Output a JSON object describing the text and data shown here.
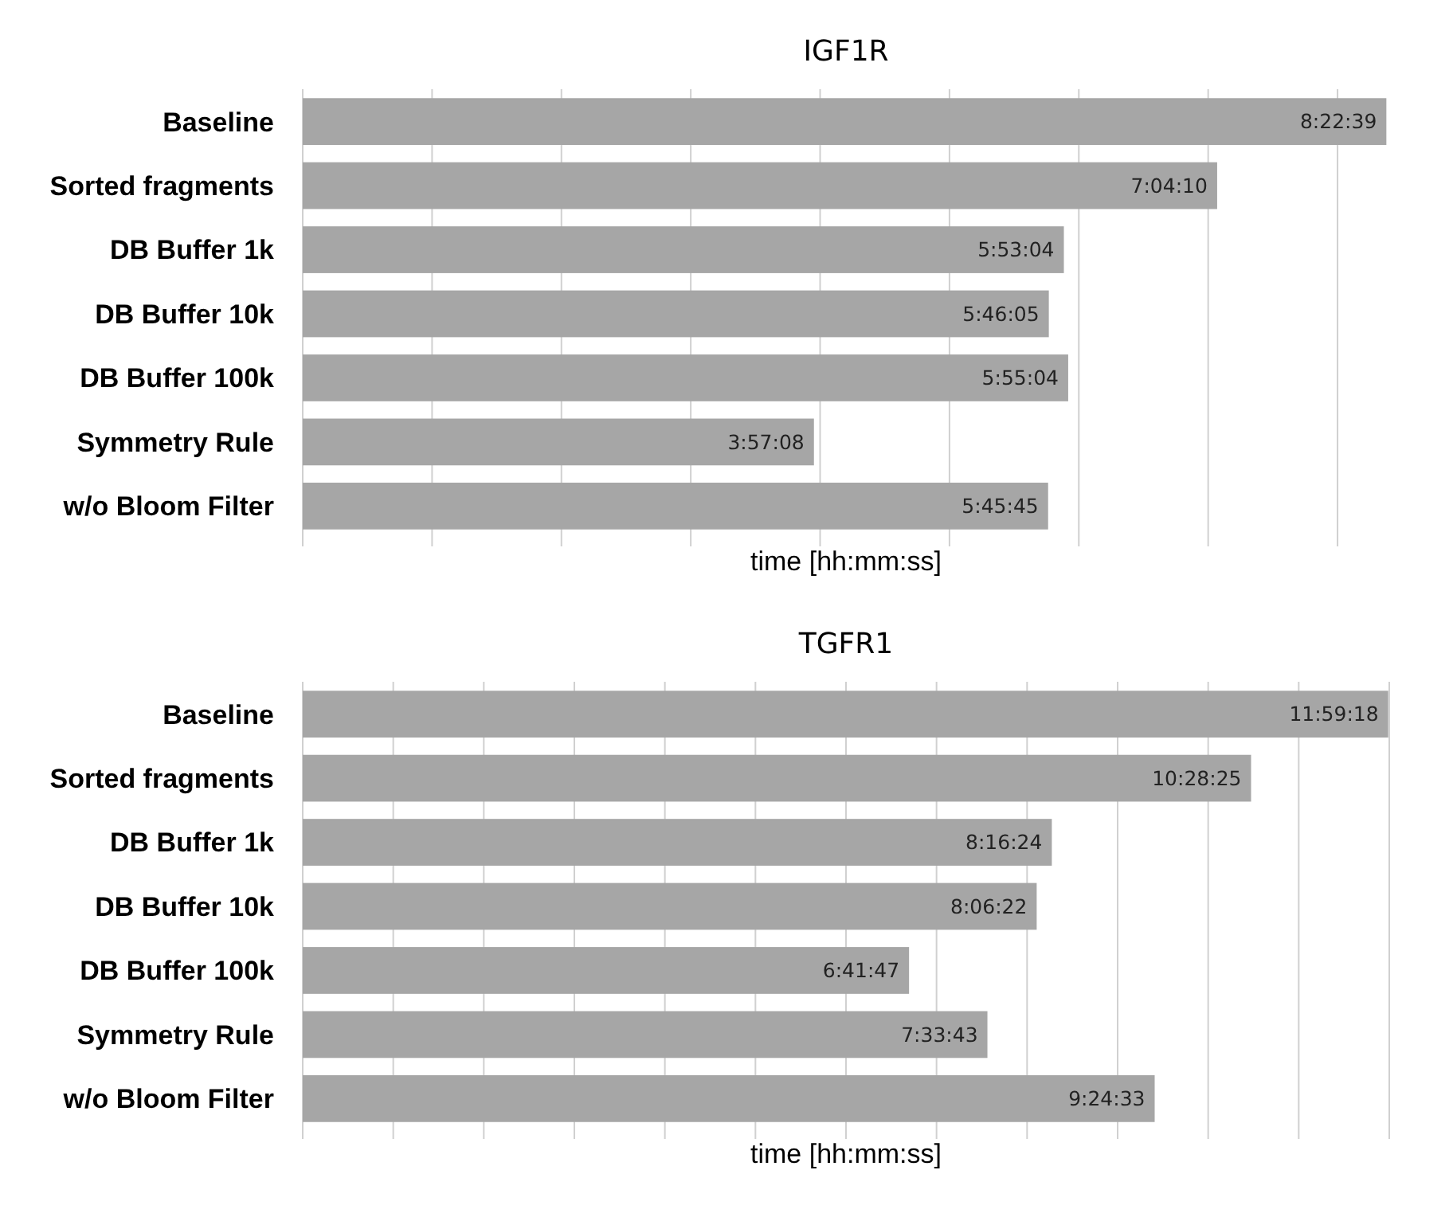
{
  "chart_data": [
    {
      "type": "bar",
      "orientation": "horizontal",
      "title": "IGF1R",
      "xlabel": "time [hh:mm:ss]",
      "categories": [
        "Baseline",
        "Sorted fragments",
        "DB Buffer 1k",
        "DB Buffer 10k",
        "DB Buffer 100k",
        "Symmetry Rule",
        "w/o Bloom Filter"
      ],
      "values": [
        8.3775,
        7.0694,
        5.8844,
        5.7681,
        5.9178,
        3.9522,
        5.7625
      ],
      "value_labels": [
        "8:22:39",
        "7:04:10",
        "5:53:04",
        "5:46:05",
        "5:55:04",
        "3:57:08",
        "5:45:45"
      ],
      "color": "#a6a6a6",
      "xlim": [
        0,
        8.4
      ],
      "xticks": [
        {
          "value": 0,
          "label": null
        },
        {
          "value": 1,
          "label": null
        },
        {
          "value": 2,
          "label": null
        },
        {
          "value": 3,
          "label": null
        },
        {
          "value": 4,
          "label": null
        },
        {
          "value": 5,
          "label": null
        },
        {
          "value": 6,
          "label": null
        },
        {
          "value": 7,
          "label": null
        },
        {
          "value": 8,
          "label": null
        }
      ],
      "grid": "x",
      "tick_labels": "y"
    },
    {
      "type": "bar",
      "orientation": "horizontal",
      "title": "TGFR1",
      "xlabel": "time [hh:mm:ss]",
      "categories": [
        "Baseline",
        "Sorted fragments",
        "DB Buffer 1k",
        "DB Buffer 10k",
        "DB Buffer 100k",
        "Symmetry Rule",
        "w/o Bloom Filter"
      ],
      "values": [
        11.9883,
        10.4736,
        8.2733,
        8.1061,
        6.6964,
        7.5619,
        9.4092
      ],
      "value_labels": [
        "11:59:18",
        "10:28:25",
        "8:16:24",
        "8:06:22",
        "6:41:47",
        "7:33:43",
        "9:24:33"
      ],
      "color": "#a6a6a6",
      "xlim": [
        0,
        12
      ],
      "xticks": [
        {
          "value": 0,
          "label": null
        },
        {
          "value": 1,
          "label": null
        },
        {
          "value": 2,
          "label": null
        },
        {
          "value": 3,
          "label": null
        },
        {
          "value": 4,
          "label": null
        },
        {
          "value": 5,
          "label": null
        },
        {
          "value": 6,
          "label": null
        },
        {
          "value": 7,
          "label": null
        },
        {
          "value": 8,
          "label": null
        },
        {
          "value": 9,
          "label": null
        },
        {
          "value": 10,
          "label": null
        },
        {
          "value": 11,
          "label": null
        },
        {
          "value": 12,
          "label": null
        }
      ],
      "grid": "x",
      "tick_labels": "y"
    }
  ]
}
